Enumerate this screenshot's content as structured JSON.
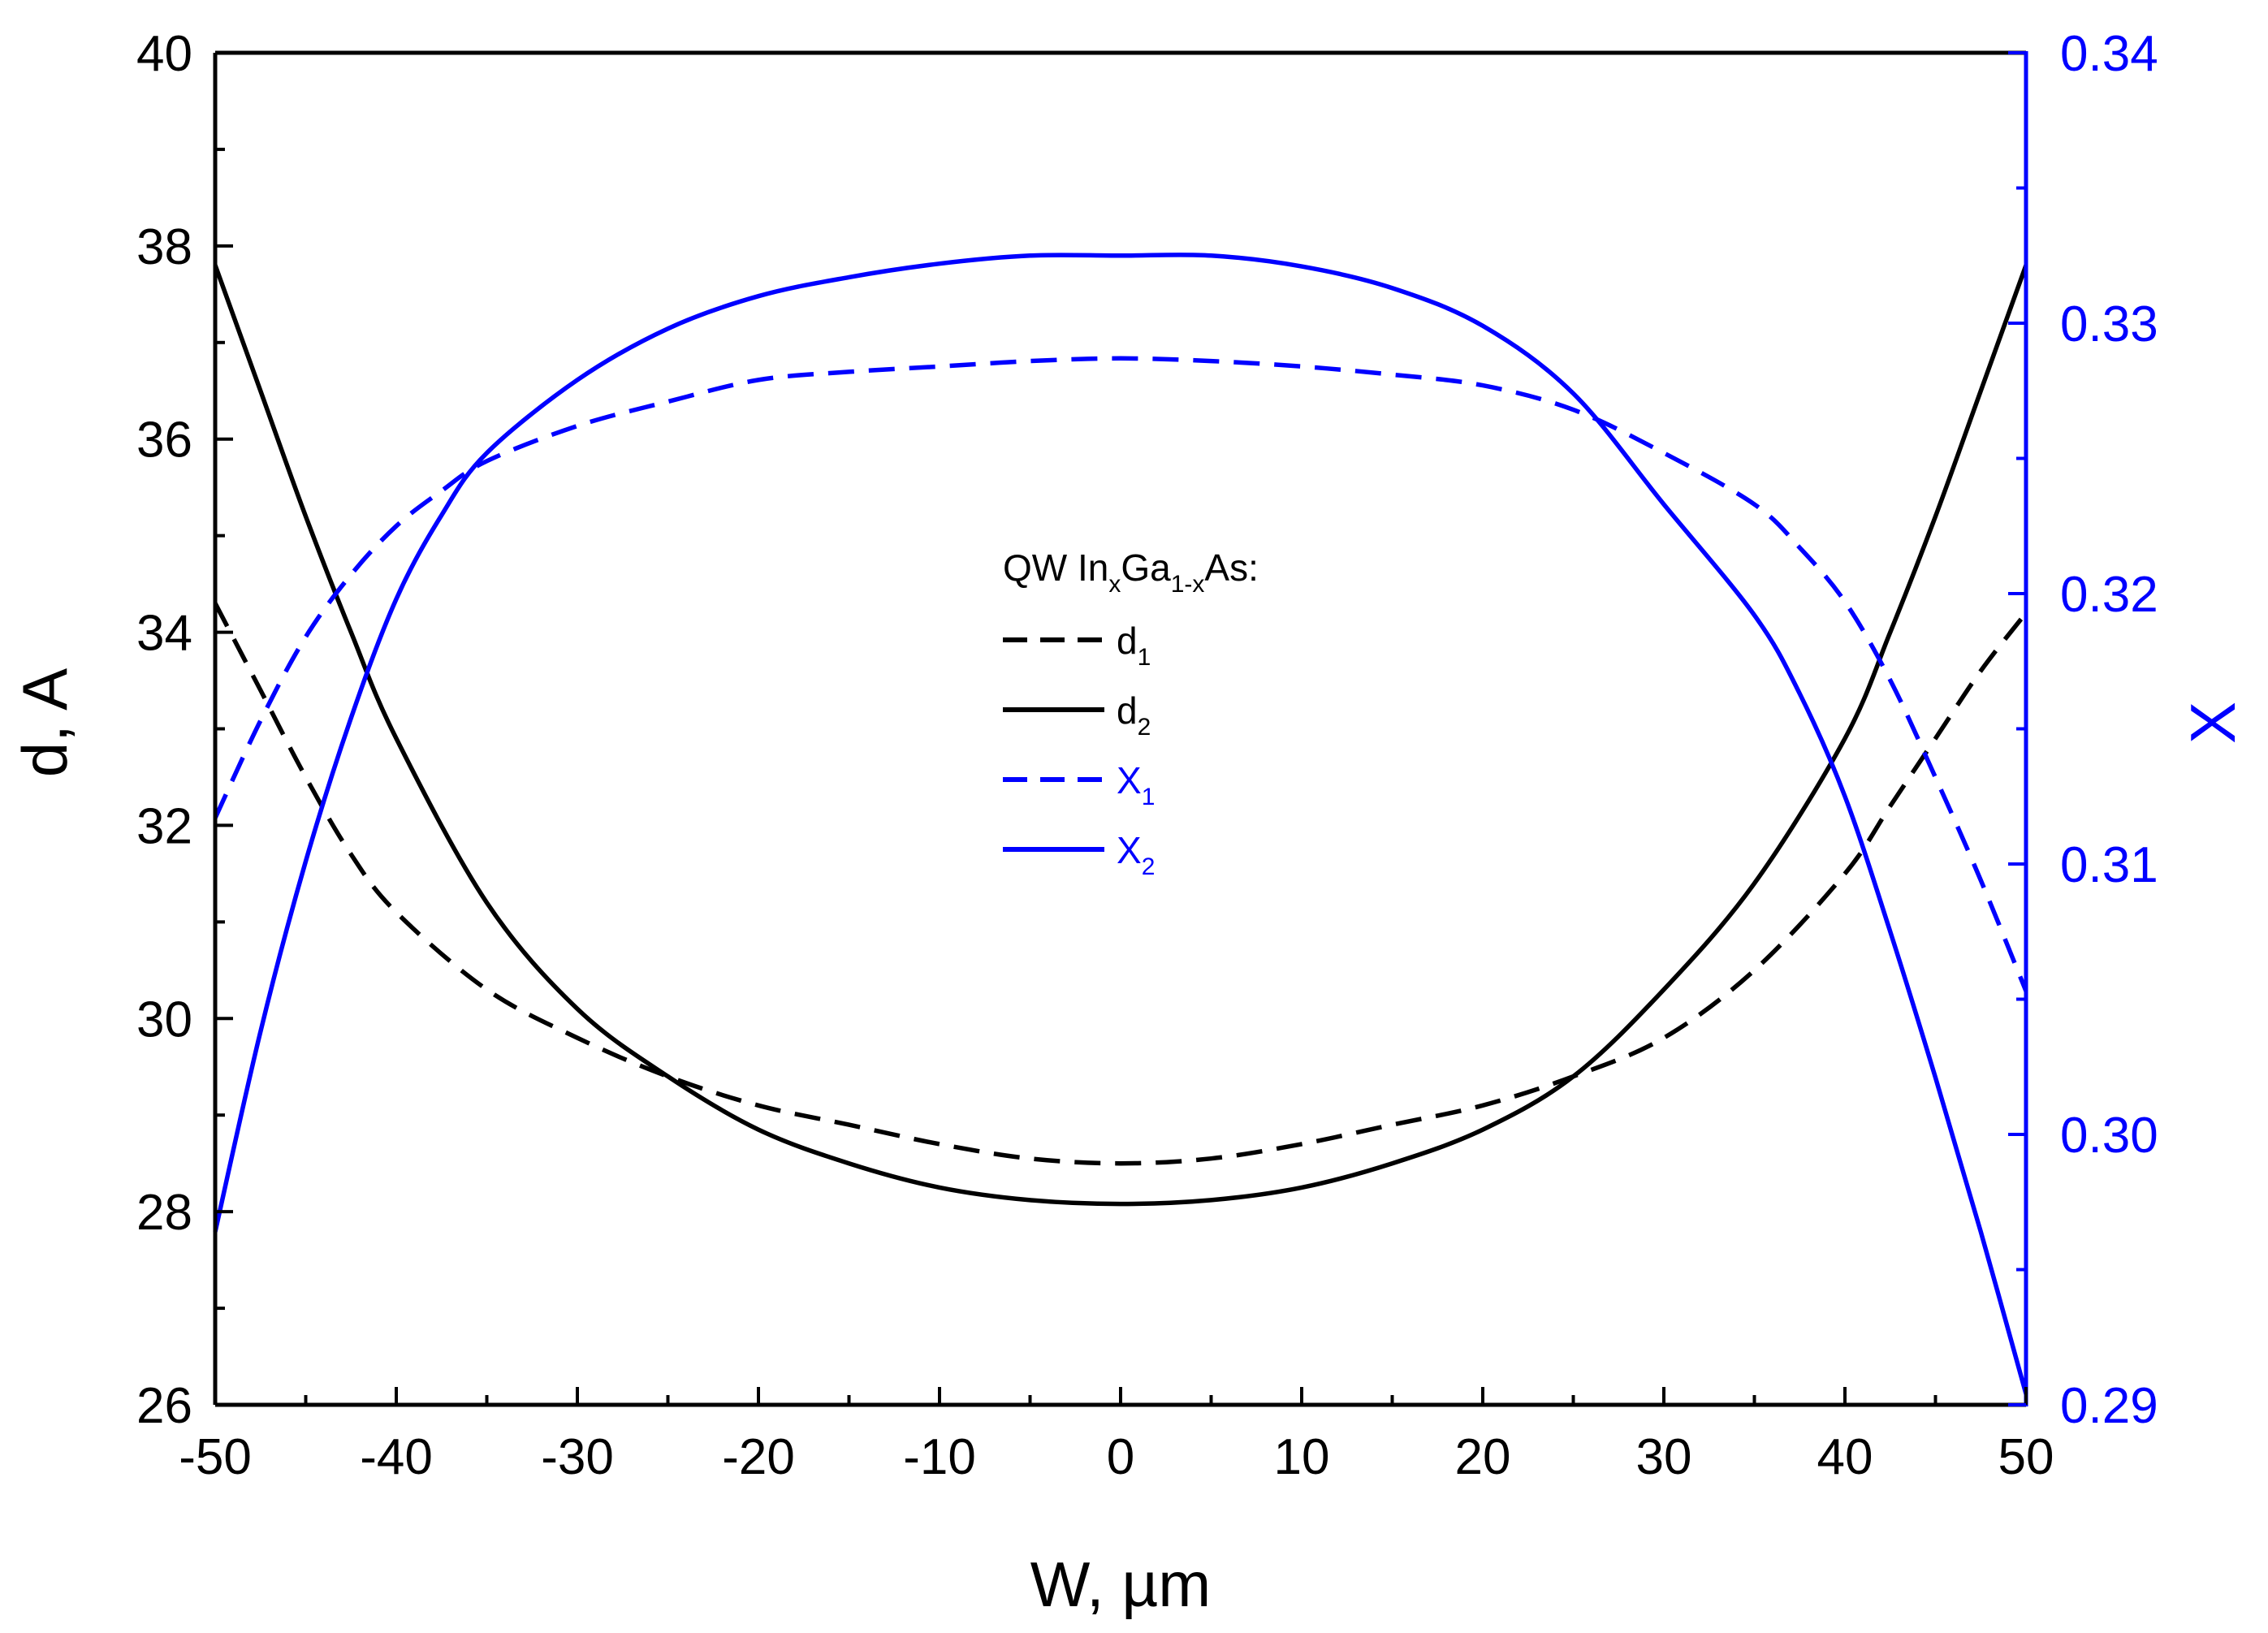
{
  "chart_data": {
    "type": "line",
    "title": "",
    "xlabel": "W, µm",
    "ylabel_left": "d, A",
    "ylabel_right": "X",
    "xlim": [
      -50,
      50
    ],
    "ylim_left": [
      26,
      40
    ],
    "ylim_right": [
      0.29,
      0.34
    ],
    "x_ticks": [
      "-50",
      "-40",
      "-30",
      "-20",
      "-10",
      "0",
      "10",
      "20",
      "30",
      "40",
      "50"
    ],
    "y_left_ticks": [
      "26",
      "28",
      "30",
      "32",
      "34",
      "36",
      "38",
      "40"
    ],
    "y_right_ticks": [
      "0.29",
      "0.30",
      "0.31",
      "0.32",
      "0.33",
      "0.34"
    ],
    "legend": {
      "placement": "center",
      "title": {
        "pre": "QW In",
        "sub1": "x",
        "mid": "Ga",
        "sub2": "1-x",
        "post": "As:"
      }
    },
    "colors": {
      "left_axis": "#000000",
      "right_axis": "#0000ff"
    },
    "series": [
      {
        "name": "d",
        "sub": "1",
        "axis": "left",
        "style": "dashed",
        "color": "#000000",
        "x": [
          -50,
          -47.5,
          -45,
          -42.5,
          -40,
          -35,
          -30,
          -25,
          -20,
          -15,
          -10,
          -5,
          0,
          5,
          10,
          15,
          20,
          25,
          30,
          35,
          40,
          42.5,
          45,
          47.5,
          50
        ],
        "values": [
          34.3,
          33.4,
          32.5,
          31.7,
          31.1,
          30.3,
          29.8,
          29.4,
          29.1,
          28.9,
          28.7,
          28.55,
          28.5,
          28.55,
          28.7,
          28.9,
          29.1,
          29.4,
          29.8,
          30.5,
          31.5,
          32.2,
          32.9,
          33.6,
          34.2
        ]
      },
      {
        "name": "d",
        "sub": "2",
        "axis": "left",
        "style": "solid",
        "color": "#000000",
        "x": [
          -50,
          -47.5,
          -45,
          -42.5,
          -40,
          -35,
          -30,
          -25,
          -20,
          -15,
          -10,
          -5,
          0,
          5,
          10,
          15,
          20,
          25,
          30,
          35,
          40,
          42.5,
          45,
          47.5,
          50
        ],
        "values": [
          37.8,
          36.5,
          35.2,
          34.0,
          32.9,
          31.2,
          30.1,
          29.4,
          28.85,
          28.5,
          28.25,
          28.12,
          28.08,
          28.12,
          28.25,
          28.5,
          28.85,
          29.4,
          30.3,
          31.4,
          32.9,
          34.0,
          35.2,
          36.5,
          37.8
        ]
      },
      {
        "name": "X",
        "sub": "1",
        "axis": "right",
        "style": "dashed",
        "color": "#0000ff",
        "x": [
          -50,
          -47.5,
          -45,
          -42.5,
          -40,
          -37.5,
          -35,
          -30,
          -25,
          -20,
          -15,
          -10,
          -5,
          0,
          5,
          10,
          15,
          20,
          25,
          30,
          35,
          37.5,
          40,
          42.5,
          45,
          47.5,
          50
        ],
        "values": [
          0.3117,
          0.3153,
          0.3184,
          0.3207,
          0.3225,
          0.3238,
          0.3249,
          0.3262,
          0.3271,
          0.3279,
          0.3282,
          0.3284,
          0.3286,
          0.3287,
          0.3286,
          0.3284,
          0.3281,
          0.3277,
          0.3268,
          0.3252,
          0.3233,
          0.3217,
          0.3197,
          0.3168,
          0.3132,
          0.3094,
          0.3053
        ]
      },
      {
        "name": "X",
        "sub": "2",
        "axis": "right",
        "style": "solid",
        "color": "#0000ff",
        "x": [
          -50,
          -47.5,
          -45,
          -42.5,
          -40,
          -37.5,
          -35,
          -30,
          -25,
          -20,
          -15,
          -10,
          -5,
          0,
          5,
          10,
          15,
          20,
          25,
          30,
          35,
          37.5,
          40,
          42.5,
          45,
          47.5,
          50
        ],
        "values": [
          0.2964,
          0.3038,
          0.3101,
          0.3154,
          0.3198,
          0.3229,
          0.3252,
          0.3279,
          0.3298,
          0.331,
          0.3317,
          0.3322,
          0.3325,
          0.3325,
          0.3325,
          0.3321,
          0.3313,
          0.3299,
          0.3274,
          0.3233,
          0.3192,
          0.3163,
          0.3125,
          0.3075,
          0.3021,
          0.2964,
          0.2904
        ]
      }
    ]
  }
}
